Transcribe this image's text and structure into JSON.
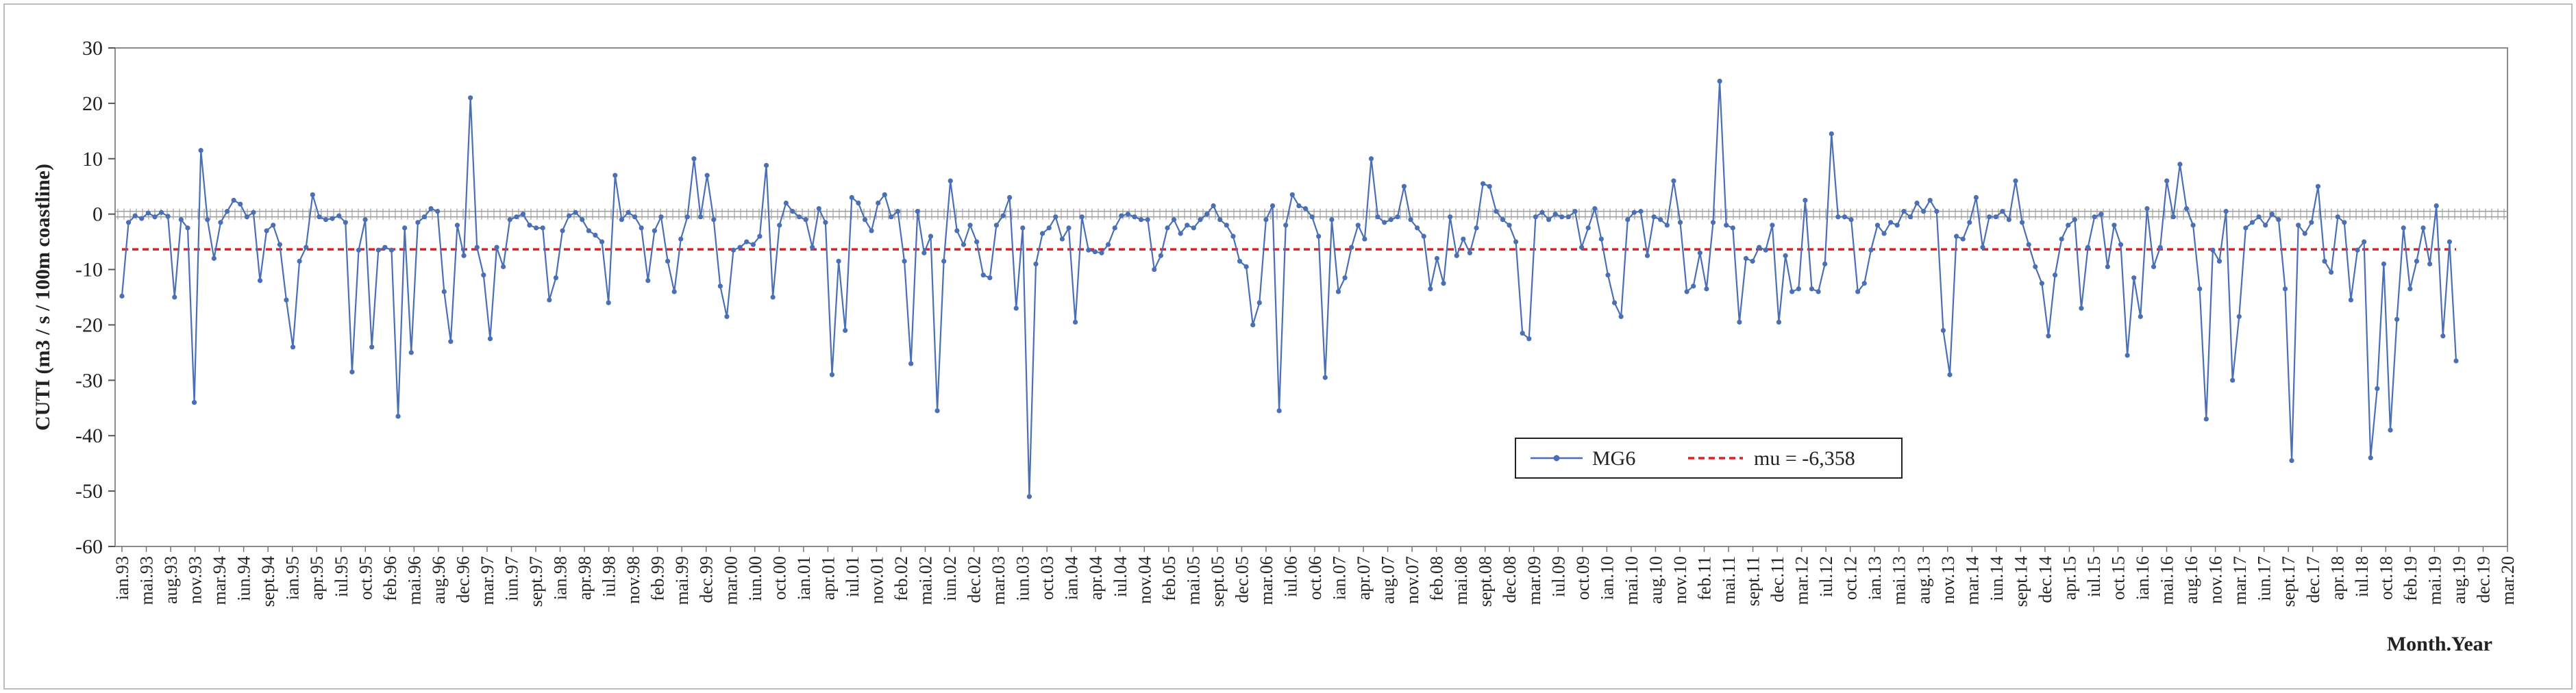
{
  "chart_data": {
    "type": "line",
    "ylabel": "CUTI  (m3 / s / 100m coastline)",
    "xlabel": "Month.Year",
    "ylim": [
      -60,
      30
    ],
    "yticks": [
      30,
      20,
      10,
      0,
      -10,
      -20,
      -30,
      -40,
      -50,
      -60
    ],
    "x_tick_labels": [
      "ian.93",
      "mai.93",
      "aug.93",
      "nov.93",
      "mar.94",
      "iun.94",
      "sept.94",
      "ian.95",
      "apr.95",
      "iul.95",
      "oct.95",
      "feb.96",
      "mai.96",
      "aug.96",
      "dec.96",
      "mar.97",
      "iun.97",
      "sept.97",
      "ian.98",
      "apr.98",
      "iul.98",
      "nov.98",
      "feb.99",
      "mai.99",
      "dec.99",
      "mar.00",
      "iun.00",
      "oct.00",
      "ian.01",
      "apr.01",
      "iul.01",
      "nov.01",
      "feb.02",
      "mai.02",
      "iun.02",
      "dec.02",
      "mar.03",
      "iun.03",
      "oct.03",
      "ian.04",
      "apr.04",
      "iul.04",
      "nov.04",
      "feb.05",
      "mai.05",
      "sept.05",
      "dec.05",
      "mar.06",
      "iul.06",
      "oct.06",
      "ian.07",
      "apr.07",
      "aug.07",
      "nov.07",
      "feb.08",
      "mai.08",
      "sept.08",
      "dec.08",
      "mar.09",
      "iul.09",
      "oct.09",
      "ian.10",
      "mai.10",
      "aug.10",
      "nov.10",
      "feb.11",
      "mai.11",
      "sept.11",
      "dec.11",
      "mar.12",
      "iul.12",
      "oct.12",
      "ian.13",
      "mai.13",
      "aug.13",
      "nov.13",
      "mar.14",
      "iun.14",
      "sept.14",
      "dec.14",
      "apr.15",
      "iul.15",
      "oct.15",
      "ian.16",
      "mai.16",
      "aug.16",
      "nov.16",
      "mar.17",
      "iun.17",
      "sept.17",
      "dec.17",
      "apr.18",
      "iul.18",
      "oct.18",
      "feb.19",
      "mai.19",
      "aug.19",
      "dec.19",
      "mar.20"
    ],
    "series": [
      {
        "name": "MG6",
        "color": "#4a6fb5",
        "values": [
          -14.8,
          -1.5,
          -0.3,
          -0.8,
          0.2,
          -0.5,
          0.3,
          -0.4,
          -15.0,
          -1.0,
          -2.5,
          -34.0,
          11.5,
          -1.0,
          -8.0,
          -1.5,
          0.5,
          2.5,
          1.8,
          -0.5,
          0.3,
          -12.0,
          -3.0,
          -2.0,
          -5.5,
          -15.5,
          -24.0,
          -8.5,
          -6.0,
          3.5,
          -0.5,
          -1.0,
          -0.8,
          -0.3,
          -1.5,
          -28.5,
          -6.5,
          -1.0,
          -24.0,
          -6.5,
          -6.0,
          -6.5,
          -36.5,
          -2.5,
          -25.0,
          -1.5,
          -0.5,
          1.0,
          0.5,
          -14.0,
          -23.0,
          -2.0,
          -7.5,
          21.0,
          -6.0,
          -11.0,
          -22.5,
          -6.0,
          -9.5,
          -1.0,
          -0.5,
          0.0,
          -2.0,
          -2.5,
          -2.5,
          -15.5,
          -11.5,
          -3.0,
          -0.3,
          0.3,
          -1.0,
          -3.0,
          -3.8,
          -5.0,
          -16.0,
          7.0,
          -1.0,
          0.3,
          -0.5,
          -2.5,
          -12.0,
          -3.0,
          -0.5,
          -8.5,
          -14.0,
          -4.5,
          -0.5,
          10.0,
          -0.5,
          7.0,
          -1.0,
          -13.0,
          -18.5,
          -6.5,
          -6.0,
          -5.0,
          -5.5,
          -4.0,
          8.8,
          -15.0,
          -2.0,
          2.0,
          0.5,
          -0.5,
          -1.0,
          -6.0,
          1.0,
          -1.5,
          -29.0,
          -8.5,
          -21.0,
          3.0,
          2.0,
          -1.0,
          -3.0,
          2.0,
          3.5,
          -0.5,
          0.5,
          -8.5,
          -27.0,
          0.5,
          -7.0,
          -4.0,
          -35.5,
          -8.5,
          6.0,
          -3.0,
          -5.5,
          -2.0,
          -5.0,
          -11.0,
          -11.5,
          -2.0,
          -0.3,
          3.0,
          -17.0,
          -2.5,
          -51.0,
          -9.0,
          -3.5,
          -2.5,
          -0.5,
          -4.5,
          -2.5,
          -19.5,
          -0.5,
          -6.5,
          -6.8,
          -7.0,
          -5.5,
          -2.5,
          -0.3,
          0.0,
          -0.5,
          -1.0,
          -1.0,
          -10.0,
          -7.5,
          -2.5,
          -1.0,
          -3.5,
          -2.0,
          -2.5,
          -1.0,
          0.0,
          1.5,
          -1.0,
          -2.0,
          -4.0,
          -8.5,
          -9.5,
          -20.0,
          -16.0,
          -1.0,
          1.5,
          -35.5,
          -2.0,
          3.5,
          1.5,
          1.0,
          -0.5,
          -4.0,
          -29.5,
          -1.0,
          -14.0,
          -11.5,
          -6.0,
          -2.0,
          -4.5,
          10.0,
          -0.5,
          -1.5,
          -1.0,
          -0.5,
          5.0,
          -1.0,
          -2.5,
          -4.0,
          -13.5,
          -8.0,
          -12.5,
          -0.5,
          -7.5,
          -4.5,
          -7.0,
          -2.5,
          5.5,
          5.0,
          0.5,
          -1.0,
          -2.0,
          -5.0,
          -21.5,
          -22.5,
          -0.5,
          0.3,
          -1.0,
          0.0,
          -0.5,
          -0.5,
          0.5,
          -6.0,
          -2.5,
          1.0,
          -4.5,
          -11.0,
          -16.0,
          -18.5,
          -1.0,
          0.3,
          0.5,
          -7.5,
          -0.5,
          -1.0,
          -2.0,
          6.0,
          -1.5,
          -14.0,
          -13.0,
          -7.0,
          -13.5,
          -1.5,
          24.0,
          -2.0,
          -2.5,
          -19.5,
          -8.0,
          -8.5,
          -6.0,
          -6.5,
          -2.0,
          -19.5,
          -7.5,
          -14.0,
          -13.5,
          2.5,
          -13.5,
          -14.0,
          -9.0,
          14.5,
          -0.5,
          -0.5,
          -1.0,
          -14.0,
          -12.5,
          -6.5,
          -2.0,
          -3.5,
          -1.5,
          -2.0,
          0.5,
          -0.5,
          2.0,
          0.5,
          2.5,
          0.5,
          -21.0,
          -29.0,
          -4.0,
          -4.5,
          -1.5,
          3.0,
          -6.0,
          -0.5,
          -0.5,
          0.5,
          -1.0,
          6.0,
          -1.5,
          -5.5,
          -9.5,
          -12.5,
          -22.0,
          -11.0,
          -4.5,
          -2.0,
          -1.0,
          -17.0,
          -6.0,
          -0.5,
          0.0,
          -9.5,
          -2.0,
          -5.5,
          -25.5,
          -11.5,
          -18.5,
          1.0,
          -9.5,
          -6.0,
          6.0,
          -0.5,
          9.0,
          1.0,
          -2.0,
          -13.5,
          -37.0,
          -6.5,
          -8.5,
          0.5,
          -30.0,
          -18.5,
          -2.5,
          -1.5,
          -0.5,
          -2.0,
          0.0,
          -1.0,
          -13.5,
          -44.5,
          -2.0,
          -3.5,
          -1.5,
          5.0,
          -8.5,
          -10.5,
          -0.5,
          -1.5,
          -15.5,
          -6.5,
          -5.0,
          -44.0,
          -31.5,
          -9.0,
          -39.0,
          -19.0,
          -2.5,
          -13.5,
          -8.5,
          -2.5,
          -9.0,
          1.5,
          -22.0,
          -5.0,
          -26.5
        ]
      },
      {
        "name": "mu = -6,358",
        "color": "#e02020",
        "value": -6.358
      }
    ],
    "legend_position": "center-right",
    "grid": false
  }
}
